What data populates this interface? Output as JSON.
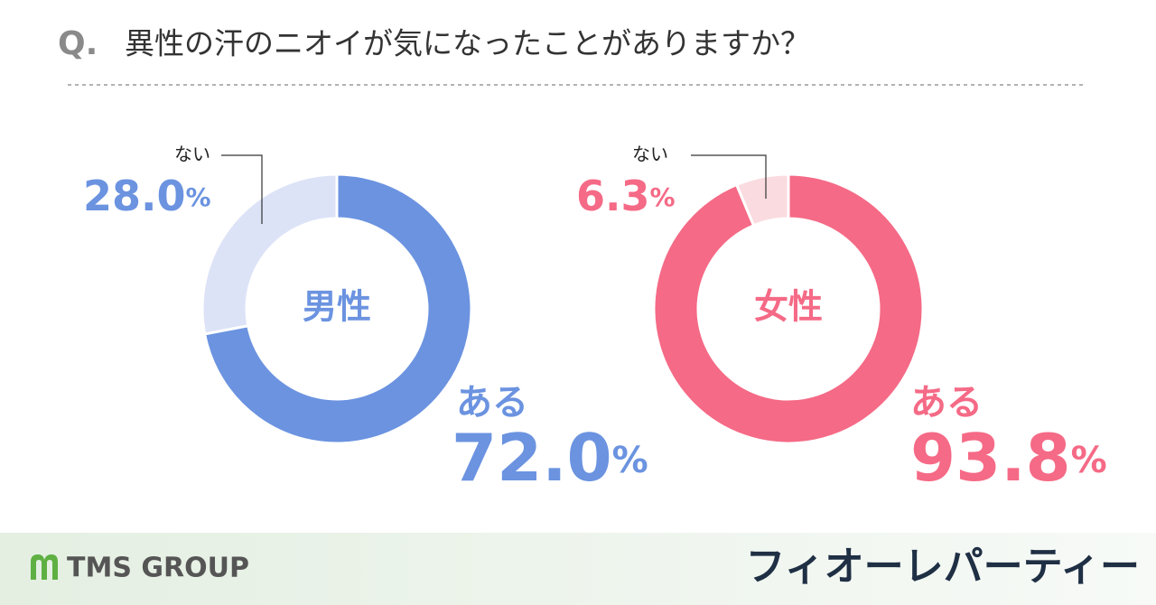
{
  "header": {
    "prefix": "Q.",
    "title": "異性の汗のニオイが気になったことがありますか？"
  },
  "chart_data": [
    {
      "type": "donut",
      "center_label": "男性",
      "categories": [
        "ある",
        "ない"
      ],
      "values": [
        72.0,
        28.0
      ],
      "value_labels": [
        "72.0%",
        "28.0%"
      ],
      "colors": [
        "#6b93e0",
        "#dde3f7"
      ],
      "label_color": "#6b93e0"
    },
    {
      "type": "donut",
      "center_label": "女性",
      "categories": [
        "ある",
        "ない"
      ],
      "values": [
        93.8,
        6.3
      ],
      "value_labels": [
        "93.8%",
        "6.3%"
      ],
      "colors": [
        "#f56a86",
        "#fadbe0"
      ],
      "label_color": "#f56a86"
    }
  ],
  "footer": {
    "logo": "TMS GROUP",
    "brand": "フィオーレパーティー"
  }
}
